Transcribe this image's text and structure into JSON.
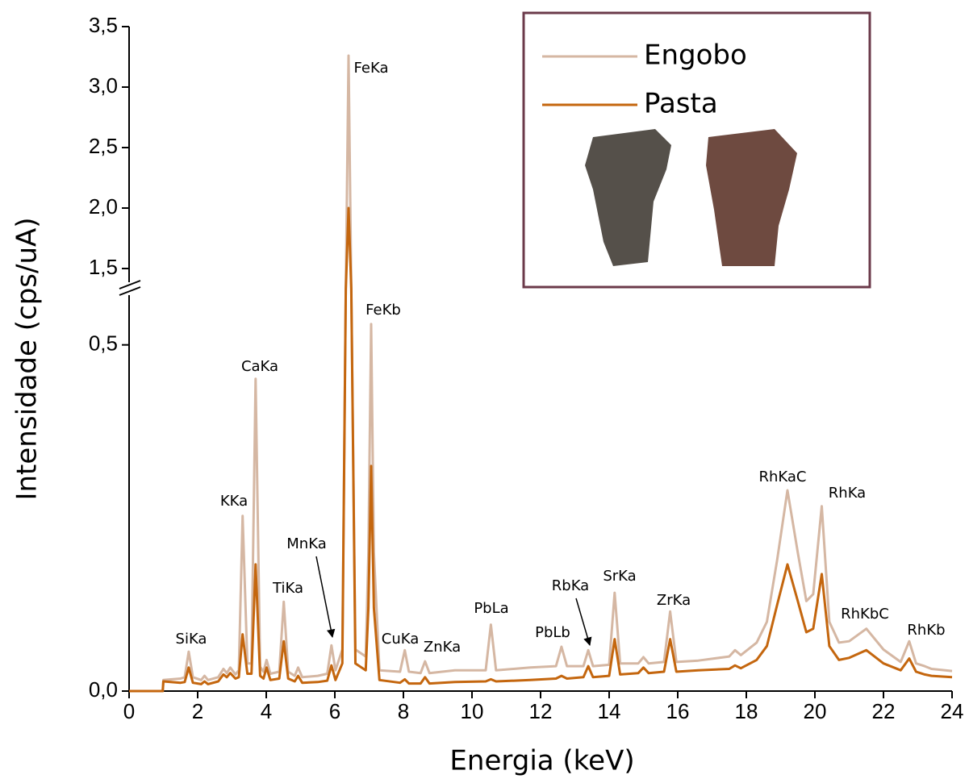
{
  "chart_data": {
    "type": "line",
    "xlabel": "Energia (keV)",
    "ylabel": "Intensidade (cps/uA)",
    "x": [
      0,
      0.98,
      1.0,
      1.5,
      1.62,
      1.74,
      1.86,
      2.1,
      2.2,
      2.3,
      2.6,
      2.75,
      2.85,
      2.95,
      3.1,
      3.2,
      3.31,
      3.45,
      3.57,
      3.69,
      3.82,
      3.92,
      4.01,
      4.12,
      4.38,
      4.51,
      4.64,
      4.83,
      4.93,
      5.05,
      5.5,
      5.78,
      5.9,
      6.02,
      6.22,
      6.32,
      6.4,
      6.48,
      6.6,
      6.9,
      6.98,
      7.06,
      7.14,
      7.3,
      7.9,
      8.04,
      8.16,
      8.5,
      8.63,
      8.76,
      9.5,
      10.4,
      10.55,
      10.7,
      11.7,
      12.45,
      12.61,
      12.77,
      13.25,
      13.39,
      13.53,
      14.0,
      14.16,
      14.32,
      14.85,
      15.0,
      15.15,
      15.6,
      15.78,
      15.96,
      16.6,
      17.5,
      17.67,
      17.84,
      18.3,
      18.6,
      18.9,
      19.2,
      19.5,
      19.75,
      19.95,
      20.2,
      20.42,
      20.7,
      21.0,
      21.5,
      22.0,
      22.5,
      22.75,
      22.95,
      23.2,
      23.4,
      24.0
    ],
    "series": [
      {
        "name": "Engobo",
        "color": "#d5b7a3",
        "values": [
          0,
          0,
          0.016,
          0.018,
          0.02,
          0.057,
          0.02,
          0.016,
          0.022,
          0.016,
          0.02,
          0.032,
          0.026,
          0.034,
          0.024,
          0.03,
          0.253,
          0.04,
          0.04,
          0.451,
          0.035,
          0.028,
          0.045,
          0.025,
          0.028,
          0.129,
          0.028,
          0.022,
          0.034,
          0.02,
          0.022,
          0.025,
          0.066,
          0.03,
          0.06,
          0.8,
          3.26,
          0.8,
          0.06,
          0.05,
          0.2,
          0.53,
          0.2,
          0.03,
          0.028,
          0.059,
          0.028,
          0.026,
          0.043,
          0.026,
          0.03,
          0.03,
          0.096,
          0.03,
          0.034,
          0.036,
          0.064,
          0.036,
          0.036,
          0.059,
          0.036,
          0.038,
          0.142,
          0.04,
          0.04,
          0.049,
          0.04,
          0.042,
          0.115,
          0.042,
          0.044,
          0.05,
          0.059,
          0.052,
          0.07,
          0.1,
          0.19,
          0.29,
          0.2,
          0.13,
          0.14,
          0.267,
          0.1,
          0.07,
          0.072,
          0.09,
          0.06,
          0.042,
          0.072,
          0.04,
          0.036,
          0.032,
          0.029
        ]
      },
      {
        "name": "Pasta",
        "color": "#c4660e",
        "values": [
          0,
          0,
          0.014,
          0.012,
          0.013,
          0.034,
          0.012,
          0.01,
          0.014,
          0.01,
          0.014,
          0.024,
          0.02,
          0.026,
          0.018,
          0.02,
          0.082,
          0.025,
          0.025,
          0.183,
          0.022,
          0.018,
          0.034,
          0.016,
          0.018,
          0.072,
          0.018,
          0.014,
          0.022,
          0.012,
          0.013,
          0.015,
          0.037,
          0.016,
          0.04,
          0.7,
          2.0,
          0.7,
          0.04,
          0.03,
          0.12,
          0.325,
          0.12,
          0.016,
          0.012,
          0.017,
          0.011,
          0.011,
          0.02,
          0.011,
          0.013,
          0.014,
          0.017,
          0.014,
          0.016,
          0.018,
          0.022,
          0.018,
          0.02,
          0.036,
          0.02,
          0.022,
          0.075,
          0.024,
          0.026,
          0.034,
          0.026,
          0.028,
          0.075,
          0.028,
          0.03,
          0.032,
          0.037,
          0.033,
          0.045,
          0.065,
          0.125,
          0.183,
          0.13,
          0.085,
          0.09,
          0.169,
          0.065,
          0.045,
          0.048,
          0.059,
          0.04,
          0.03,
          0.047,
          0.028,
          0.024,
          0.022,
          0.02
        ]
      }
    ],
    "xlim": [
      0,
      24
    ],
    "xticks": [
      0,
      2,
      4,
      6,
      8,
      10,
      12,
      14,
      16,
      18,
      20,
      22,
      24
    ],
    "ylim": [
      0,
      3.5
    ],
    "ybreak": [
      0.58,
      1.34
    ],
    "yticks": [
      {
        "value": 0,
        "label": "0,0"
      },
      {
        "value": 0.5,
        "label": "0,5"
      },
      {
        "value": 1.5,
        "label": "1,5"
      },
      {
        "value": 2.0,
        "label": "2,0"
      },
      {
        "value": 2.5,
        "label": "2,5"
      },
      {
        "value": 3.0,
        "label": "3,0"
      },
      {
        "value": 3.5,
        "label": "3,5"
      }
    ],
    "legend": "upper right",
    "annotations": [
      "FeKa",
      "FeKb",
      "CaKa",
      "KKa",
      "TiKa",
      "SiKa",
      "MnKa",
      "CuKa",
      "ZnKa",
      "PbLa",
      "PbLb",
      "RbKa",
      "SrKa",
      "ZrKa",
      "RhKaC",
      "RhKa",
      "RhKbC",
      "RhKb"
    ]
  }
}
